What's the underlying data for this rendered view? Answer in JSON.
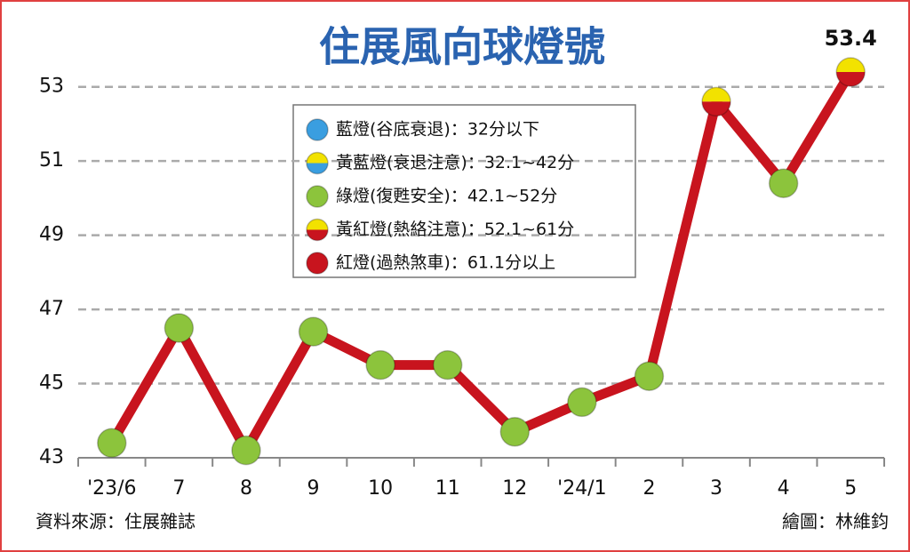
{
  "chart_data": {
    "type": "line",
    "title": "住展風向球燈號",
    "categories": [
      "'23/6",
      "7",
      "8",
      "9",
      "10",
      "11",
      "12",
      "'24/1",
      "2",
      "3",
      "4",
      "5"
    ],
    "series": [
      {
        "color": "#c8141e",
        "values": [
          43.4,
          46.5,
          43.2,
          46.4,
          45.5,
          45.5,
          43.7,
          44.5,
          45.2,
          52.6,
          50.4,
          53.4
        ],
        "value_labels": [
          null,
          null,
          null,
          null,
          null,
          null,
          null,
          null,
          null,
          null,
          null,
          "53.4"
        ],
        "marker_colors": [
          [
            "#8cc43c"
          ],
          [
            "#8cc43c"
          ],
          [
            "#8cc43c"
          ],
          [
            "#8cc43c"
          ],
          [
            "#8cc43c"
          ],
          [
            "#8cc43c"
          ],
          [
            "#8cc43c"
          ],
          [
            "#8cc43c"
          ],
          [
            "#8cc43c"
          ],
          [
            "#f2e200",
            "#c8141e"
          ],
          [
            "#8cc43c"
          ],
          [
            "#f2e200",
            "#c8141e"
          ]
        ]
      }
    ],
    "ylim": [
      43,
      54
    ],
    "yticks": [
      43,
      45,
      47,
      49,
      51,
      53
    ],
    "grid": true,
    "legend": [
      {
        "label": "藍燈(谷底衰退)：32分以下",
        "colors": [
          "#3a9ee0"
        ]
      },
      {
        "label": "黃藍燈(衰退注意)：32.1~42分",
        "colors": [
          "#f2e200",
          "#3a9ee0"
        ]
      },
      {
        "label": "綠燈(復甦安全)：42.1~52分",
        "colors": [
          "#8cc43c"
        ]
      },
      {
        "label": "黃紅燈(熱絡注意)：52.1~61分",
        "colors": [
          "#f2e200",
          "#c8141e"
        ]
      },
      {
        "label": "紅燈(過熱煞車)：61.1分以上",
        "colors": [
          "#c8141e"
        ]
      }
    ],
    "source": "資料來源：住展雜誌",
    "credit": "繪圖：林維鈞"
  }
}
